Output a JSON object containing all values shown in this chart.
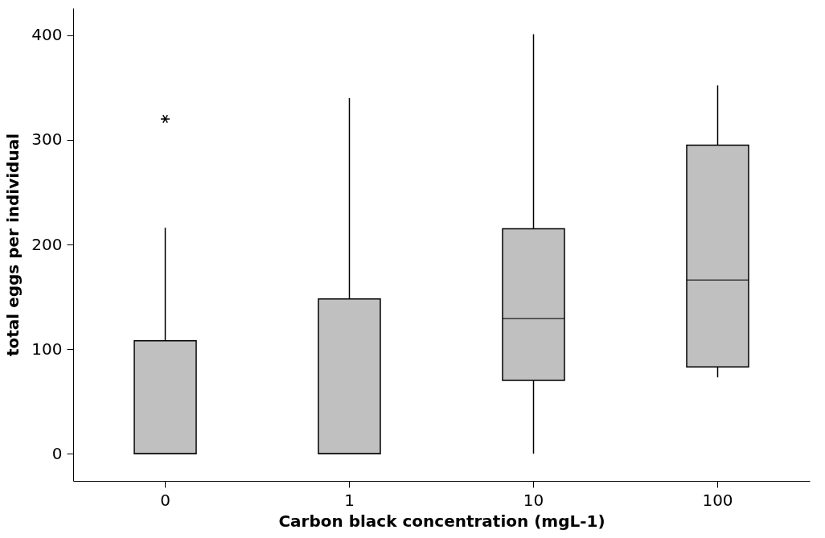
{
  "chart_data": {
    "type": "box",
    "xlabel": "Carbon black concentration (mgL-1)",
    "ylabel": "total eggs per individual",
    "categories": [
      "0",
      "1",
      "10",
      "100"
    ],
    "ylim": [
      -26,
      426
    ],
    "yticks": [
      0,
      100,
      200,
      300,
      400
    ],
    "series": [
      {
        "color": "#c0c0c0",
        "boxes": [
          {
            "low": 0,
            "q1": 0,
            "median": 0,
            "q3": 108,
            "high": 216,
            "outliers": [
              320
            ]
          },
          {
            "low": 0,
            "q1": 0,
            "median": 0,
            "q3": 148,
            "high": 340
          },
          {
            "low": 0,
            "q1": 70,
            "median": 129,
            "q3": 215,
            "high": 401
          },
          {
            "low": 73,
            "q1": 83,
            "median": 166,
            "q3": 295,
            "high": 352
          }
        ]
      }
    ]
  }
}
